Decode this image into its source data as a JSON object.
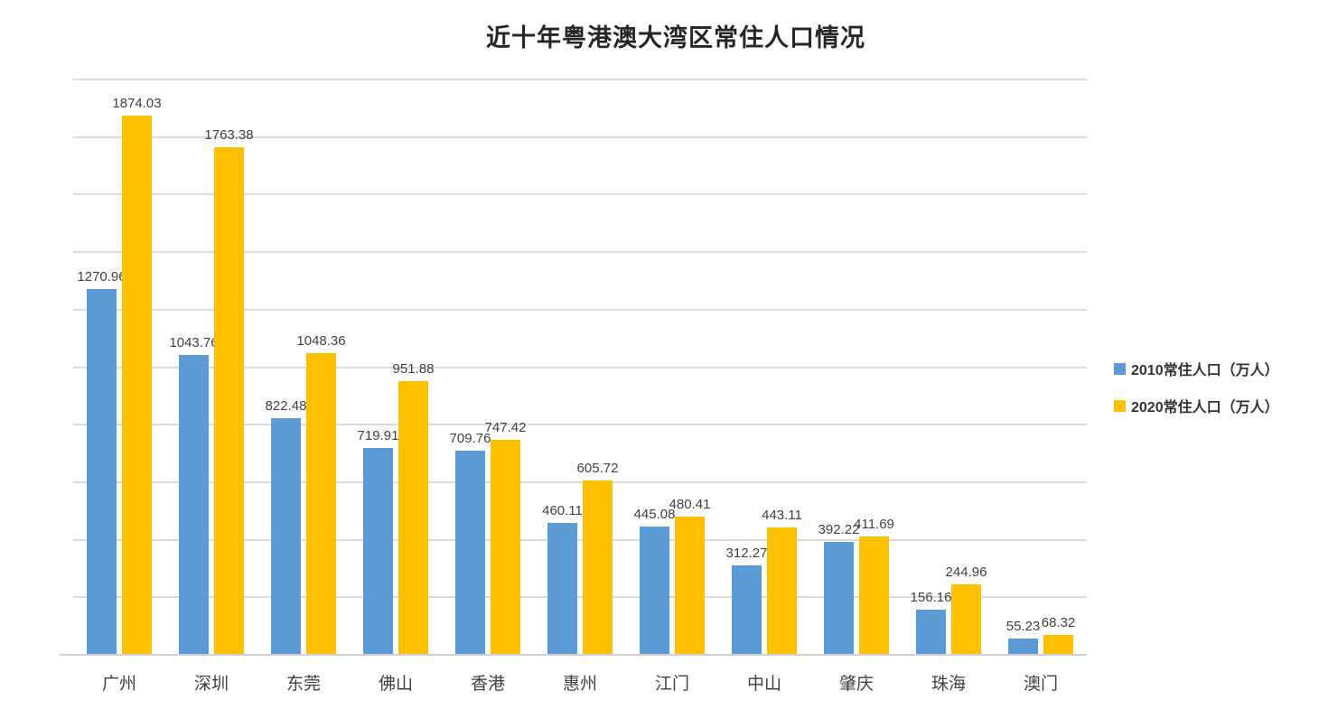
{
  "chart_data": {
    "type": "bar",
    "title": "近十年粤港澳大湾区常住人口情况",
    "categories": [
      "广州",
      "深圳",
      "东莞",
      "佛山",
      "香港",
      "惠州",
      "江门",
      "中山",
      "肇庆",
      "珠海",
      "澳门"
    ],
    "series": [
      {
        "name": "2010常住人口（万人）",
        "color": "#5B9BD5",
        "values": [
          1270.96,
          1043.76,
          822.48,
          719.91,
          709.76,
          460.11,
          445.08,
          312.27,
          392.22,
          156.16,
          55.23
        ]
      },
      {
        "name": "2020常住人口（万人）",
        "color": "#FFC000",
        "values": [
          1874.03,
          1763.38,
          1048.36,
          951.88,
          747.42,
          605.72,
          480.41,
          443.11,
          411.69,
          244.96,
          68.32
        ]
      }
    ],
    "ylim": [
      0,
      2000
    ],
    "ytick_step": 200,
    "ytick_labels": [
      "0",
      "200",
      "400",
      "600",
      "800",
      "1000",
      "1200",
      "1400",
      "1600",
      "1800",
      "2000"
    ],
    "grid": true,
    "legend_position": "right",
    "xlabel": "",
    "ylabel": ""
  },
  "colors": {
    "gridline": "#DBDBDB",
    "axis_line": "#D0D0D0",
    "axis_text": "#404040",
    "data_label_text": "#404040",
    "title_text": "#262626",
    "legend_text": "#333333",
    "background": "#FFFFFF"
  }
}
